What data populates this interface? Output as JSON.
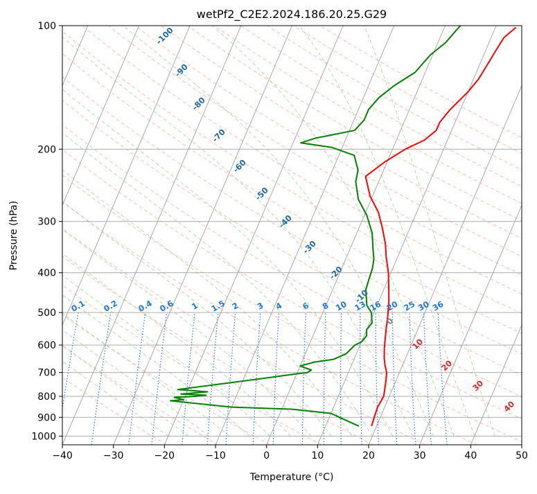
{
  "chart_data": {
    "type": "skew-t",
    "title": "wetPf2_C2E2.2024.186.20.25.G29",
    "xlabel": "Temperature (°C)",
    "ylabel": "Pressure (hPa)",
    "xlim": [
      -40,
      50
    ],
    "ylim": [
      1050,
      100
    ],
    "y_scale": "log",
    "grid": true,
    "x_ticks": [
      "−40",
      "−30",
      "−20",
      "−10",
      "0",
      "10",
      "20",
      "30",
      "40",
      "50"
    ],
    "y_ticks": [
      "100",
      "200",
      "300",
      "400",
      "500",
      "600",
      "700",
      "800",
      "900",
      "1000"
    ],
    "series": [
      {
        "role": "temperature",
        "color": "#ff0000",
        "points": [
          [
            19.0,
            945
          ],
          [
            18.8,
            900
          ],
          [
            18.6,
            850
          ],
          [
            18.9,
            800
          ],
          [
            18.4,
            760
          ],
          [
            18.0,
            730
          ],
          [
            17.5,
            700
          ],
          [
            16.5,
            670
          ],
          [
            15.8,
            645
          ],
          [
            15.0,
            610
          ],
          [
            14.0,
            560
          ],
          [
            13.0,
            510
          ],
          [
            12.0,
            470
          ],
          [
            11.0,
            440
          ],
          [
            9.5,
            400
          ],
          [
            7.7,
            365
          ],
          [
            6.5,
            340
          ],
          [
            4.5,
            310
          ],
          [
            2.5,
            285
          ],
          [
            -0.5,
            260
          ],
          [
            -3.0,
            233
          ],
          [
            -0.5,
            215
          ],
          [
            2.5,
            200
          ],
          [
            5.5,
            190
          ],
          [
            7.0,
            180
          ],
          [
            7.0,
            172
          ],
          [
            8.0,
            160
          ],
          [
            10.0,
            145
          ],
          [
            11.0,
            135
          ],
          [
            11.5,
            125
          ],
          [
            12.0,
            115
          ],
          [
            12.5,
            107
          ],
          [
            14.0,
            101
          ]
        ]
      },
      {
        "role": "dewpoint",
        "color": "#008000",
        "points": [
          [
            16.5,
            945
          ],
          [
            15.0,
            930
          ],
          [
            13.0,
            910
          ],
          [
            10.0,
            880
          ],
          [
            2.0,
            860
          ],
          [
            -10.0,
            850
          ],
          [
            -22.5,
            820
          ],
          [
            -20.0,
            815
          ],
          [
            -22.0,
            805
          ],
          [
            -18.0,
            800
          ],
          [
            -16.0,
            795
          ],
          [
            -21.0,
            790
          ],
          [
            -16.0,
            780
          ],
          [
            -22.0,
            770
          ],
          [
            -5.0,
            720
          ],
          [
            0.0,
            705
          ],
          [
            2.0,
            700
          ],
          [
            2.5,
            690
          ],
          [
            0.0,
            675
          ],
          [
            2.5,
            660
          ],
          [
            6.0,
            650
          ],
          [
            8.0,
            630
          ],
          [
            9.0,
            600
          ],
          [
            10.0,
            590
          ],
          [
            10.5,
            570
          ],
          [
            10.0,
            550
          ],
          [
            10.5,
            530
          ],
          [
            9.5,
            500
          ],
          [
            8.0,
            480
          ],
          [
            6.5,
            440
          ],
          [
            6.3,
            420
          ],
          [
            6.0,
            390
          ],
          [
            5.5,
            370
          ],
          [
            4.5,
            350
          ],
          [
            3.0,
            320
          ],
          [
            0.5,
            290
          ],
          [
            -2.5,
            265
          ],
          [
            -4.5,
            240
          ],
          [
            -5.0,
            225
          ],
          [
            -7.0,
            207
          ],
          [
            -12.0,
            198
          ],
          [
            -18.5,
            193
          ],
          [
            -16.0,
            188
          ],
          [
            -9.0,
            180
          ],
          [
            -8.0,
            170
          ],
          [
            -8.0,
            160
          ],
          [
            -7.0,
            150
          ],
          [
            -5.0,
            140
          ],
          [
            -2.0,
            130
          ],
          [
            -0.5,
            118
          ],
          [
            1.5,
            110
          ],
          [
            2.5,
            103
          ],
          [
            3.0,
            100
          ]
        ]
      }
    ],
    "dry_adiabat_labels": [
      "-100",
      "-90",
      "-80",
      "-70",
      "-60",
      "-50",
      "-40",
      "-30",
      "-20",
      "-10"
    ],
    "moist_adiabat_labels": [
      "10",
      "20",
      "30",
      "40"
    ],
    "freezing_label": "0",
    "mixing_ratio_labels": [
      "0.1",
      "0.2",
      "0.4",
      "0.6",
      "1",
      "1.5",
      "2",
      "3",
      "4",
      "6",
      "8",
      "10",
      "13",
      "16",
      "20",
      "25",
      "30",
      "36"
    ],
    "colors": {
      "temperature": "#ff0000",
      "dewpoint": "#008000",
      "dry_adiabats": "#ff9a7a",
      "moist_adiabats": "#90cc90",
      "mixing_ratio": "#1f77d4",
      "dry_adiabat_labels": "#1f6aa0",
      "moist_adiabat_labels": "#d62728",
      "grid": "#a0a0a0"
    }
  }
}
